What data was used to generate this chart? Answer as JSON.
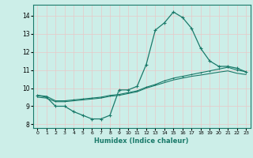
{
  "xlabel": "Humidex (Indice chaleur)",
  "ylabel": "",
  "background_color": "#cceee8",
  "grid_color": "#e8c8c8",
  "line_color": "#1a7a6a",
  "xlim": [
    -0.5,
    23.5
  ],
  "ylim": [
    7.8,
    14.6
  ],
  "yticks": [
    8,
    9,
    10,
    11,
    12,
    13,
    14
  ],
  "xticks": [
    0,
    1,
    2,
    3,
    4,
    5,
    6,
    7,
    8,
    9,
    10,
    11,
    12,
    13,
    14,
    15,
    16,
    17,
    18,
    19,
    20,
    21,
    22,
    23
  ],
  "curve1_x": [
    0,
    1,
    2,
    3,
    4,
    5,
    6,
    7,
    8,
    9,
    10,
    11,
    12,
    13,
    14,
    15,
    16,
    17,
    18,
    19,
    20,
    21,
    22,
    23
  ],
  "curve1_y": [
    9.6,
    9.5,
    9.0,
    9.0,
    8.7,
    8.5,
    8.3,
    8.3,
    8.5,
    9.9,
    9.9,
    10.1,
    11.3,
    13.2,
    13.6,
    14.2,
    13.9,
    13.3,
    12.2,
    11.5,
    11.2,
    11.2,
    11.1,
    10.9
  ],
  "curve2_x": [
    0,
    1,
    2,
    3,
    4,
    5,
    6,
    7,
    8,
    9,
    10,
    11,
    12,
    13,
    14,
    15,
    16,
    17,
    18,
    19,
    20,
    21,
    22,
    23
  ],
  "curve2_y": [
    9.6,
    9.55,
    9.3,
    9.3,
    9.35,
    9.4,
    9.45,
    9.5,
    9.6,
    9.65,
    9.75,
    9.85,
    10.05,
    10.2,
    10.4,
    10.55,
    10.65,
    10.75,
    10.85,
    10.95,
    11.05,
    11.15,
    11.0,
    10.9
  ],
  "curve3_x": [
    0,
    1,
    2,
    3,
    4,
    5,
    6,
    7,
    8,
    9,
    10,
    11,
    12,
    13,
    14,
    15,
    16,
    17,
    18,
    19,
    20,
    21,
    22,
    23
  ],
  "curve3_y": [
    9.5,
    9.45,
    9.25,
    9.25,
    9.3,
    9.35,
    9.4,
    9.45,
    9.55,
    9.6,
    9.7,
    9.8,
    10.0,
    10.15,
    10.3,
    10.45,
    10.55,
    10.65,
    10.72,
    10.8,
    10.88,
    10.95,
    10.82,
    10.75
  ]
}
